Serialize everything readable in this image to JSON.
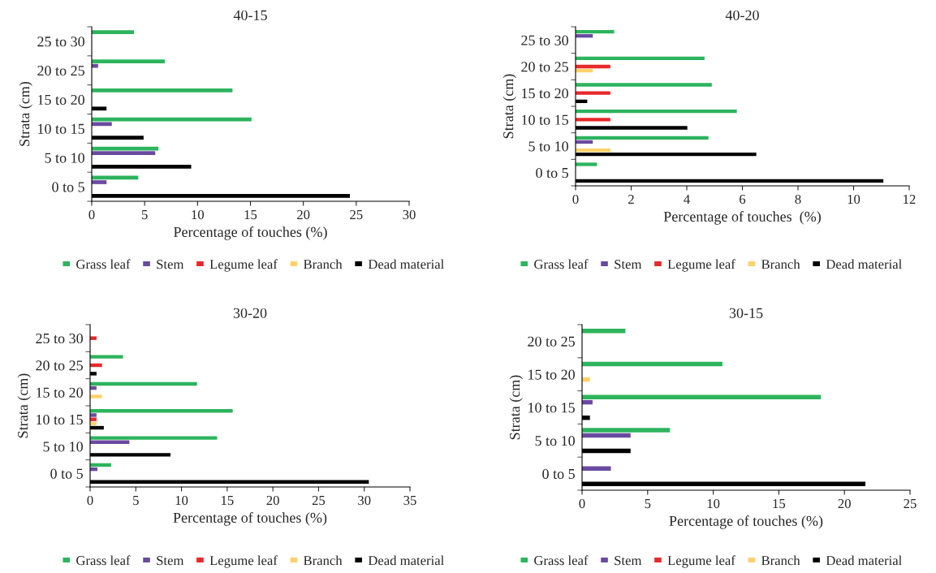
{
  "chart_data": [
    {
      "type": "bar",
      "orientation": "horizontal",
      "title": "40-15",
      "xlabel": "Percentage of touches (%)",
      "ylabel": "Strata (cm)",
      "legend": "bottom",
      "grid": false,
      "categories": [
        "25 to 30",
        "20 to 25",
        "15 to 20",
        "10 to 15",
        "5 to 10",
        "0 to 5"
      ],
      "xlim": [
        0,
        30
      ],
      "xticks": [
        0,
        5,
        10,
        15,
        20,
        25,
        30
      ],
      "series": [
        {
          "name": "Grass leaf",
          "color": "#2db45d",
          "values": [
            4.0,
            6.9,
            13.3,
            15.1,
            6.3,
            4.4
          ]
        },
        {
          "name": "Stem",
          "color": "#6a4aa0",
          "values": [
            null,
            0.6,
            null,
            1.9,
            6.0,
            1.4
          ]
        },
        {
          "name": "Legume leaf",
          "color": "#e8282a",
          "values": [
            null,
            null,
            null,
            null,
            null,
            null
          ]
        },
        {
          "name": "Branch",
          "color": "#fdd26b",
          "values": [
            null,
            null,
            null,
            null,
            null,
            null
          ]
        },
        {
          "name": "Dead material",
          "color": "#000000",
          "values": [
            null,
            null,
            1.4,
            4.9,
            9.4,
            24.4
          ]
        }
      ]
    },
    {
      "type": "bar",
      "orientation": "horizontal",
      "title": "40-20",
      "xlabel": "Percentage of touches  (%)",
      "ylabel": "Strata (cm)",
      "legend": "bottom",
      "grid": false,
      "categories": [
        "25 to 30",
        "20 to 25",
        "15 to 20",
        "10 to 15",
        "5 to 10",
        "0 to 5"
      ],
      "xlim": [
        0,
        12
      ],
      "xticks": [
        0,
        2,
        4,
        6,
        8,
        10,
        12
      ],
      "series": [
        {
          "name": "Grass leaf",
          "color": "#2db45d",
          "values": [
            1.39,
            4.64,
            4.9,
            5.8,
            4.78,
            0.77
          ]
        },
        {
          "name": "Stem",
          "color": "#6a4aa0",
          "values": [
            0.62,
            null,
            null,
            null,
            0.62,
            null
          ]
        },
        {
          "name": "Legume leaf",
          "color": "#e8282a",
          "values": [
            null,
            1.25,
            1.25,
            1.25,
            null,
            null
          ]
        },
        {
          "name": "Branch",
          "color": "#fdd26b",
          "values": [
            null,
            0.62,
            null,
            null,
            1.25,
            null
          ]
        },
        {
          "name": "Dead material",
          "color": "#000000",
          "values": [
            null,
            null,
            0.42,
            4.02,
            6.5,
            11.07
          ]
        }
      ]
    },
    {
      "type": "bar",
      "orientation": "horizontal",
      "title": "30-20",
      "xlabel": "Percentage of touches (%)",
      "ylabel": "Strata (cm)",
      "legend": "bottom",
      "grid": false,
      "categories": [
        "25 to 30",
        "20 to 25",
        "15 to 20",
        "10 to 15",
        "5 to 10",
        "0 to 5"
      ],
      "xlim": [
        0,
        35
      ],
      "xticks": [
        0,
        5,
        10,
        15,
        20,
        25,
        30,
        35
      ],
      "series": [
        {
          "name": "Grass leaf",
          "color": "#2db45d",
          "values": [
            null,
            3.6,
            11.7,
            15.6,
            13.9,
            2.3
          ]
        },
        {
          "name": "Stem",
          "color": "#6a4aa0",
          "values": [
            null,
            null,
            0.7,
            0.7,
            4.3,
            0.8
          ]
        },
        {
          "name": "Legume leaf",
          "color": "#e8282a",
          "values": [
            0.7,
            1.3,
            null,
            0.7,
            null,
            null
          ]
        },
        {
          "name": "Branch",
          "color": "#fdd26b",
          "values": [
            null,
            null,
            1.3,
            0.7,
            null,
            null
          ]
        },
        {
          "name": "Dead material",
          "color": "#000000",
          "values": [
            null,
            0.7,
            null,
            1.5,
            8.8,
            30.5
          ]
        }
      ]
    },
    {
      "type": "bar",
      "orientation": "horizontal",
      "title": "30-15",
      "xlabel": "Percentage of touches (%)",
      "ylabel": "Strata (cm)",
      "legend": "bottom",
      "grid": false,
      "categories": [
        "20 to 25",
        "15 to 20",
        "10 to 15",
        "5 to 10",
        "0 to 5"
      ],
      "xlim": [
        0,
        25
      ],
      "xticks": [
        0,
        5,
        10,
        15,
        20,
        25
      ],
      "series": [
        {
          "name": "Grass leaf",
          "color": "#2db45d",
          "values": [
            3.3,
            10.7,
            18.2,
            6.7,
            null
          ]
        },
        {
          "name": "Stem",
          "color": "#6a4aa0",
          "values": [
            null,
            null,
            0.8,
            3.7,
            2.2
          ]
        },
        {
          "name": "Legume leaf",
          "color": "#e8282a",
          "values": [
            null,
            null,
            null,
            null,
            null
          ]
        },
        {
          "name": "Branch",
          "color": "#fdd26b",
          "values": [
            null,
            0.6,
            null,
            null,
            null
          ]
        },
        {
          "name": "Dead material",
          "color": "#000000",
          "values": [
            null,
            null,
            0.6,
            3.7,
            21.6
          ]
        }
      ]
    }
  ]
}
